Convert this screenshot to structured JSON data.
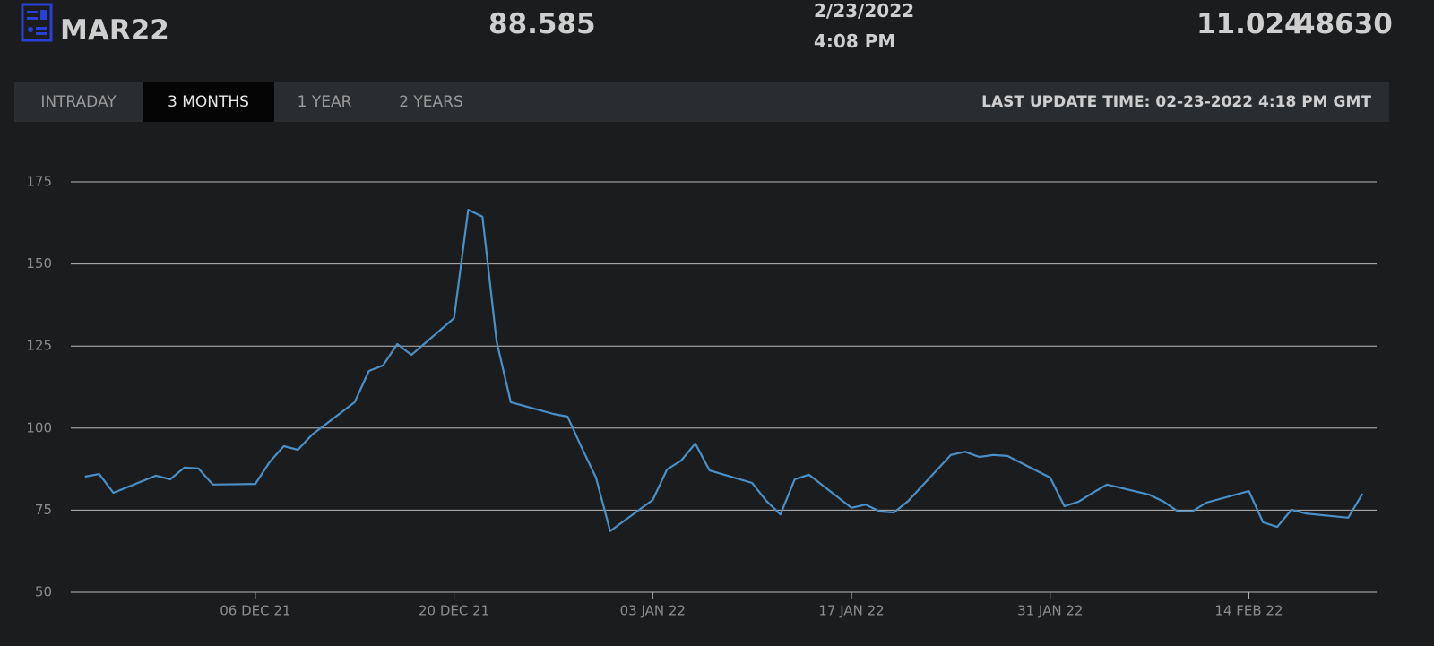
{
  "header": {
    "symbol": "MAR22",
    "price": "88.585",
    "date": "2/23/2022",
    "time": "4:08 PM",
    "change": "11.024",
    "volume": "48630"
  },
  "tabs": [
    "INTRADAY",
    "3 MONTHS",
    "1 YEAR",
    "2 YEARS"
  ],
  "active_tab": 1,
  "last_update": "LAST UPDATE TIME: 02-23-2022 4:18 PM GMT",
  "chart_data": {
    "type": "line",
    "color": "#4a90c8",
    "grid": true,
    "x": [
      "2021-11-24",
      "2021-11-25",
      "2021-11-26",
      "2021-11-29",
      "2021-11-30",
      "2021-12-01",
      "2021-12-02",
      "2021-12-03",
      "2021-12-06",
      "2021-12-07",
      "2021-12-08",
      "2021-12-09",
      "2021-12-10",
      "2021-12-13",
      "2021-12-14",
      "2021-12-15",
      "2021-12-16",
      "2021-12-17",
      "2021-12-20",
      "2021-12-21",
      "2021-12-22",
      "2021-12-23",
      "2021-12-24",
      "2021-12-27",
      "2021-12-28",
      "2021-12-29",
      "2021-12-30",
      "2021-12-31",
      "2022-01-03",
      "2022-01-04",
      "2022-01-05",
      "2022-01-06",
      "2022-01-07",
      "2022-01-10",
      "2022-01-11",
      "2022-01-12",
      "2022-01-13",
      "2022-01-14",
      "2022-01-17",
      "2022-01-18",
      "2022-01-19",
      "2022-01-20",
      "2022-01-21",
      "2022-01-24",
      "2022-01-25",
      "2022-01-26",
      "2022-01-27",
      "2022-01-28",
      "2022-01-31",
      "2022-02-01",
      "2022-02-02",
      "2022-02-03",
      "2022-02-04",
      "2022-02-07",
      "2022-02-08",
      "2022-02-09",
      "2022-02-10",
      "2022-02-11",
      "2022-02-14",
      "2022-02-15",
      "2022-02-16",
      "2022-02-17",
      "2022-02-18",
      "2022-02-21",
      "2022-02-22"
    ],
    "values": [
      85.2,
      86.0,
      80.3,
      85.5,
      84.4,
      88.0,
      87.7,
      82.8,
      83.0,
      89.6,
      94.5,
      93.4,
      98.0,
      107.9,
      117.4,
      119.1,
      125.6,
      122.3,
      133.5,
      166.5,
      164.4,
      126.4,
      107.9,
      104.3,
      103.5,
      94.0,
      84.9,
      68.6,
      78.1,
      87.4,
      90.1,
      95.3,
      87.1,
      83.3,
      77.8,
      73.7,
      84.4,
      85.8,
      75.7,
      76.7,
      74.6,
      74.3,
      77.8,
      91.8,
      92.8,
      91.2,
      91.8,
      91.5,
      84.9,
      76.2,
      77.6,
      80.3,
      82.8,
      79.7,
      77.6,
      74.6,
      74.6,
      77.3,
      80.8,
      71.3,
      69.9,
      75.1,
      74.0,
      72.7,
      80.0
    ],
    "xlim": [
      "2021-11-23",
      "2022-02-23"
    ],
    "xticks": [
      {
        "value": "2021-12-06",
        "label": "06 DEC 21"
      },
      {
        "value": "2021-12-20",
        "label": "20 DEC 21"
      },
      {
        "value": "2022-01-03",
        "label": "03 JAN 22"
      },
      {
        "value": "2022-01-17",
        "label": "17 JAN 22"
      },
      {
        "value": "2022-01-31",
        "label": "31 JAN 22"
      },
      {
        "value": "2022-02-14",
        "label": "14 FEB 22"
      }
    ],
    "ylim": [
      50,
      175
    ],
    "yticks": [
      50,
      75,
      100,
      125,
      150,
      175
    ]
  }
}
